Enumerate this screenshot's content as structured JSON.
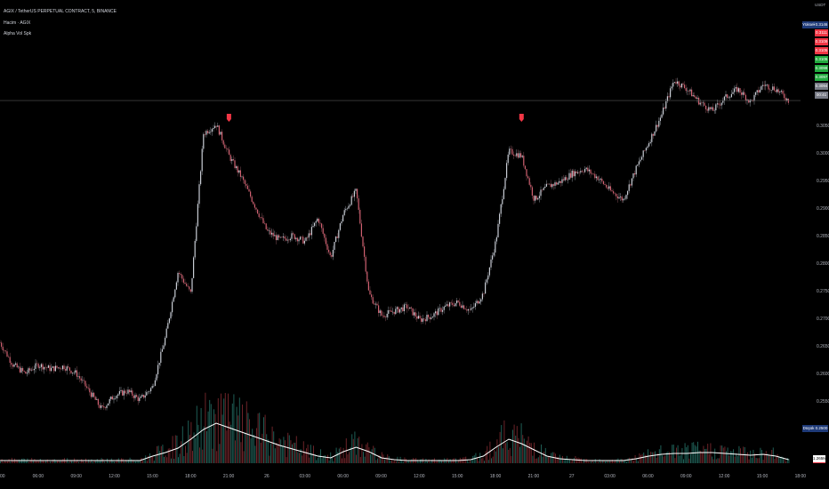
{
  "header": {
    "symbol_line": "AGIX / TetherUS PERPETUAL CONTRACT, 5, BINANCE",
    "indicator_1": "Hacim · AGIX",
    "indicator_2": "Alpha Vol Spk"
  },
  "price_axis": {
    "currency": "USDT",
    "high_label": "Yüksek",
    "high_value": "0.3146",
    "low_label": "Düşük",
    "low_value": "0.2500",
    "stack_values": [
      {
        "value": "0.3111",
        "color": "#f23645"
      },
      {
        "value": "0.3109",
        "color": "#f23645"
      },
      {
        "value": "0.3105",
        "color": "#f23645"
      },
      {
        "value": "0.3105",
        "color": "#22ab3f"
      },
      {
        "value": "0.3098",
        "color": "#22ab3f"
      },
      {
        "value": "0.3097",
        "color": "#22ab3f"
      },
      {
        "value": "0.3094",
        "color": "#787b86"
      },
      {
        "value": "00:41",
        "color": "#787b86"
      }
    ],
    "volume_value": "1.265M"
  },
  "colors": {
    "background": "#000000",
    "up": "#26a69a",
    "down": "#ef5350",
    "ma_line": "#ffffff",
    "marker": "#f23645",
    "label_bg": "#1e3a78"
  },
  "chart_data": {
    "type": "line",
    "title": "",
    "xlabel": "",
    "ylabel": "",
    "x_interval": "1h",
    "x_ticks": [
      "00",
      "06:00",
      "09:00",
      "12:00",
      "15:00",
      "18:00",
      "21:00",
      "26",
      "03:00",
      "06:00",
      "09:00",
      "12:00",
      "15:00",
      "18:00",
      "21:00",
      "27",
      "03:00",
      "06:00",
      "09:00",
      "12:00",
      "15:00",
      "18:00"
    ],
    "y_ticks": [
      "0.3050",
      "0.3000",
      "0.2950",
      "0.2900",
      "0.2850",
      "0.2800",
      "0.2750",
      "0.2700",
      "0.2650",
      "0.2600",
      "0.2550"
    ],
    "ylim": [
      0.25,
      0.323
    ],
    "current_price": 0.3095,
    "close": [
      0.2656,
      0.2616,
      0.26,
      0.2616,
      0.2608,
      0.2613,
      0.26,
      0.2568,
      0.2535,
      0.256,
      0.2568,
      0.2552,
      0.2576,
      0.2665,
      0.2785,
      0.2745,
      0.3035,
      0.3052,
      0.2995,
      0.2955,
      0.2906,
      0.2858,
      0.2842,
      0.285,
      0.2839,
      0.2882,
      0.281,
      0.289,
      0.2931,
      0.2745,
      0.2705,
      0.2713,
      0.2721,
      0.2697,
      0.2705,
      0.2721,
      0.2729,
      0.2713,
      0.2745,
      0.2842,
      0.3003,
      0.2995,
      0.2915,
      0.2939,
      0.2947,
      0.2963,
      0.2971,
      0.2955,
      0.2931,
      0.2915,
      0.2971,
      0.3019,
      0.3068,
      0.3132,
      0.3116,
      0.3092,
      0.3076,
      0.31,
      0.3116,
      0.3092,
      0.3124,
      0.3116,
      0.3095
    ],
    "signal_markers_hour": [
      18,
      41
    ],
    "volume_ma_relative": [
      3,
      3,
      3,
      3,
      3,
      3,
      3,
      3,
      3,
      3,
      3,
      3,
      8,
      12,
      17,
      27,
      38,
      45,
      40,
      35,
      30,
      25,
      20,
      16,
      12,
      8,
      6,
      13,
      18,
      13,
      6,
      4,
      3,
      3,
      3,
      3,
      3,
      4,
      8,
      18,
      27,
      22,
      15,
      8,
      5,
      4,
      3,
      3,
      3,
      3,
      5,
      8,
      10,
      11,
      11,
      12,
      12,
      11,
      10,
      9,
      10,
      8,
      4
    ]
  }
}
